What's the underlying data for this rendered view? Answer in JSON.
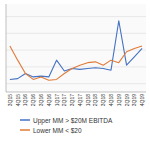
{
  "chart_data": {
    "type": "line",
    "title": "",
    "categories": [
      "3Q15",
      "4Q15",
      "1Q16",
      "2Q16",
      "3Q16",
      "4Q16",
      "1Q17",
      "2Q17",
      "3Q17",
      "4Q17",
      "1Q18",
      "2Q18",
      "3Q18",
      "4Q18",
      "1Q19",
      "2Q19",
      "3Q19",
      "4Q19"
    ],
    "series": [
      {
        "name": "Upper MM > $20M EBITDA",
        "color": "#4472c4",
        "values": [
          6.5,
          6.6,
          7.2,
          6.8,
          6.9,
          6.8,
          8.8,
          7.5,
          7.8,
          7.7,
          7.8,
          7.9,
          7.8,
          7.6,
          13.5,
          8.2,
          9.2,
          10.2
        ]
      },
      {
        "name": "Lower MM < $20",
        "color": "#e07b39",
        "values": [
          10.5,
          8.8,
          7.2,
          6.5,
          6.8,
          6.4,
          6.5,
          7.2,
          7.8,
          8.2,
          8.5,
          8.6,
          8.2,
          8.8,
          8.5,
          9.8,
          10.2,
          10.5
        ]
      }
    ],
    "ylim": [
      5.0,
      15.5
    ],
    "yticks": [
      6,
      8,
      10,
      12,
      14
    ],
    "grid": true,
    "tick_labels": "x",
    "legend": "bottom"
  }
}
